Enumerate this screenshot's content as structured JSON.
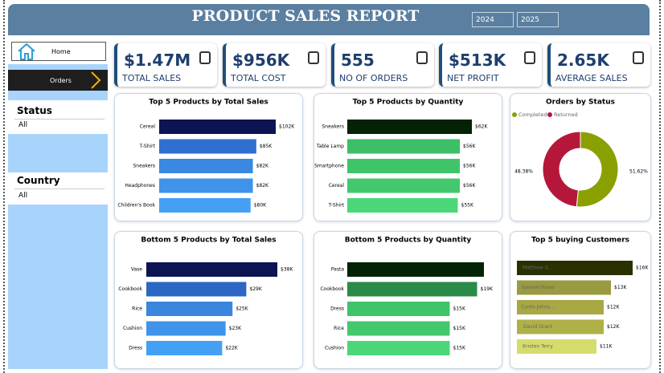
{
  "header": {
    "title": "PRODUCT SALES REPORT",
    "years": [
      "2024",
      "2025"
    ]
  },
  "nav": [
    "Home",
    "Orders"
  ],
  "filters": [
    {
      "label": "Status",
      "value": "All"
    },
    {
      "label": "Country",
      "value": "All"
    }
  ],
  "kpis": [
    {
      "value": "$1.47M",
      "label": "TOTAL SALES"
    },
    {
      "value": "$956K",
      "label": "TOTAL COST"
    },
    {
      "value": "555",
      "label": "NO OF ORDERS"
    },
    {
      "value": "$513K",
      "label": "NET PROFIT"
    },
    {
      "value": "2.65K",
      "label": "AVERAGE SALES"
    }
  ],
  "chart_data": [
    {
      "type": "hbar",
      "title": "Top 5 Products by Total Sales",
      "categories": [
        "Cereal",
        "T-Shirt",
        "Sneakers",
        "Headphones",
        "Children's Book"
      ],
      "values": [
        102000,
        85000,
        82000,
        82000,
        80000
      ],
      "value_labels": [
        "$102K",
        "$85K",
        "$82K",
        "$82K",
        "$80K"
      ],
      "colors": [
        "#0d1452",
        "#2f6fd0",
        "#3a88e0",
        "#3f93ea",
        "#44a0f5"
      ]
    },
    {
      "type": "hbar",
      "title": "Top 5 Products by Quantity",
      "categories": [
        "Sneakers",
        "Table Lamp",
        "Smartphone",
        "Cereal",
        "T-Shirt"
      ],
      "values": [
        62000,
        56000,
        56000,
        56000,
        55000
      ],
      "value_labels": [
        "$62K",
        "$56K",
        "$56K",
        "$56K",
        "$55K"
      ],
      "colors": [
        "#042204",
        "#3cbf66",
        "#40c46a",
        "#44c86e",
        "#4cd67a"
      ]
    },
    {
      "type": "donut",
      "title": "Orders by Status",
      "categories": [
        "Completed",
        "Returned"
      ],
      "values": [
        51.62,
        48.38
      ],
      "value_labels": [
        "51.62%",
        "48.38%"
      ],
      "colors": [
        "#8aa000",
        "#b5173b"
      ]
    },
    {
      "type": "hbar",
      "title": "Bottom 5 Products by Total Sales",
      "categories": [
        "Vase",
        "Cookbook",
        "Rice",
        "Cushion",
        "Dress"
      ],
      "values": [
        38000,
        29000,
        25000,
        23000,
        22000
      ],
      "value_labels": [
        "$38K",
        "$29K",
        "$25K",
        "$23K",
        "$22K"
      ],
      "colors": [
        "#0d1452",
        "#2d67c4",
        "#3a86de",
        "#3f93ea",
        "#44a0f5"
      ]
    },
    {
      "type": "hbar",
      "title": "Bottom 5 Products by Quantity",
      "categories": [
        "Pasta",
        "Cookbook",
        "Dress",
        "Rice",
        "Cushion"
      ],
      "values": [
        20000,
        19000,
        15000,
        15000,
        15000
      ],
      "value_labels": [
        null,
        "$19K",
        "$15K",
        "$15K",
        "$15K"
      ],
      "colors": [
        "#042204",
        "#2a8a48",
        "#40c46a",
        "#44c86e",
        "#4cd67a"
      ]
    },
    {
      "type": "hbar",
      "title": "Top 5 buying Customers",
      "categories": [
        "Matthew G...",
        "Samuel Rivas",
        "Curtis Johns...",
        "David Grant",
        "Kristen Terry"
      ],
      "values": [
        16000,
        13000,
        12000,
        12000,
        11000
      ],
      "value_labels": [
        "$16K",
        "$13K",
        "$12K",
        "$12K",
        "$11K"
      ],
      "colors": [
        "#2a3000",
        "#9a9a40",
        "#a8a844",
        "#b0b048",
        "#d6dc6c"
      ]
    }
  ]
}
